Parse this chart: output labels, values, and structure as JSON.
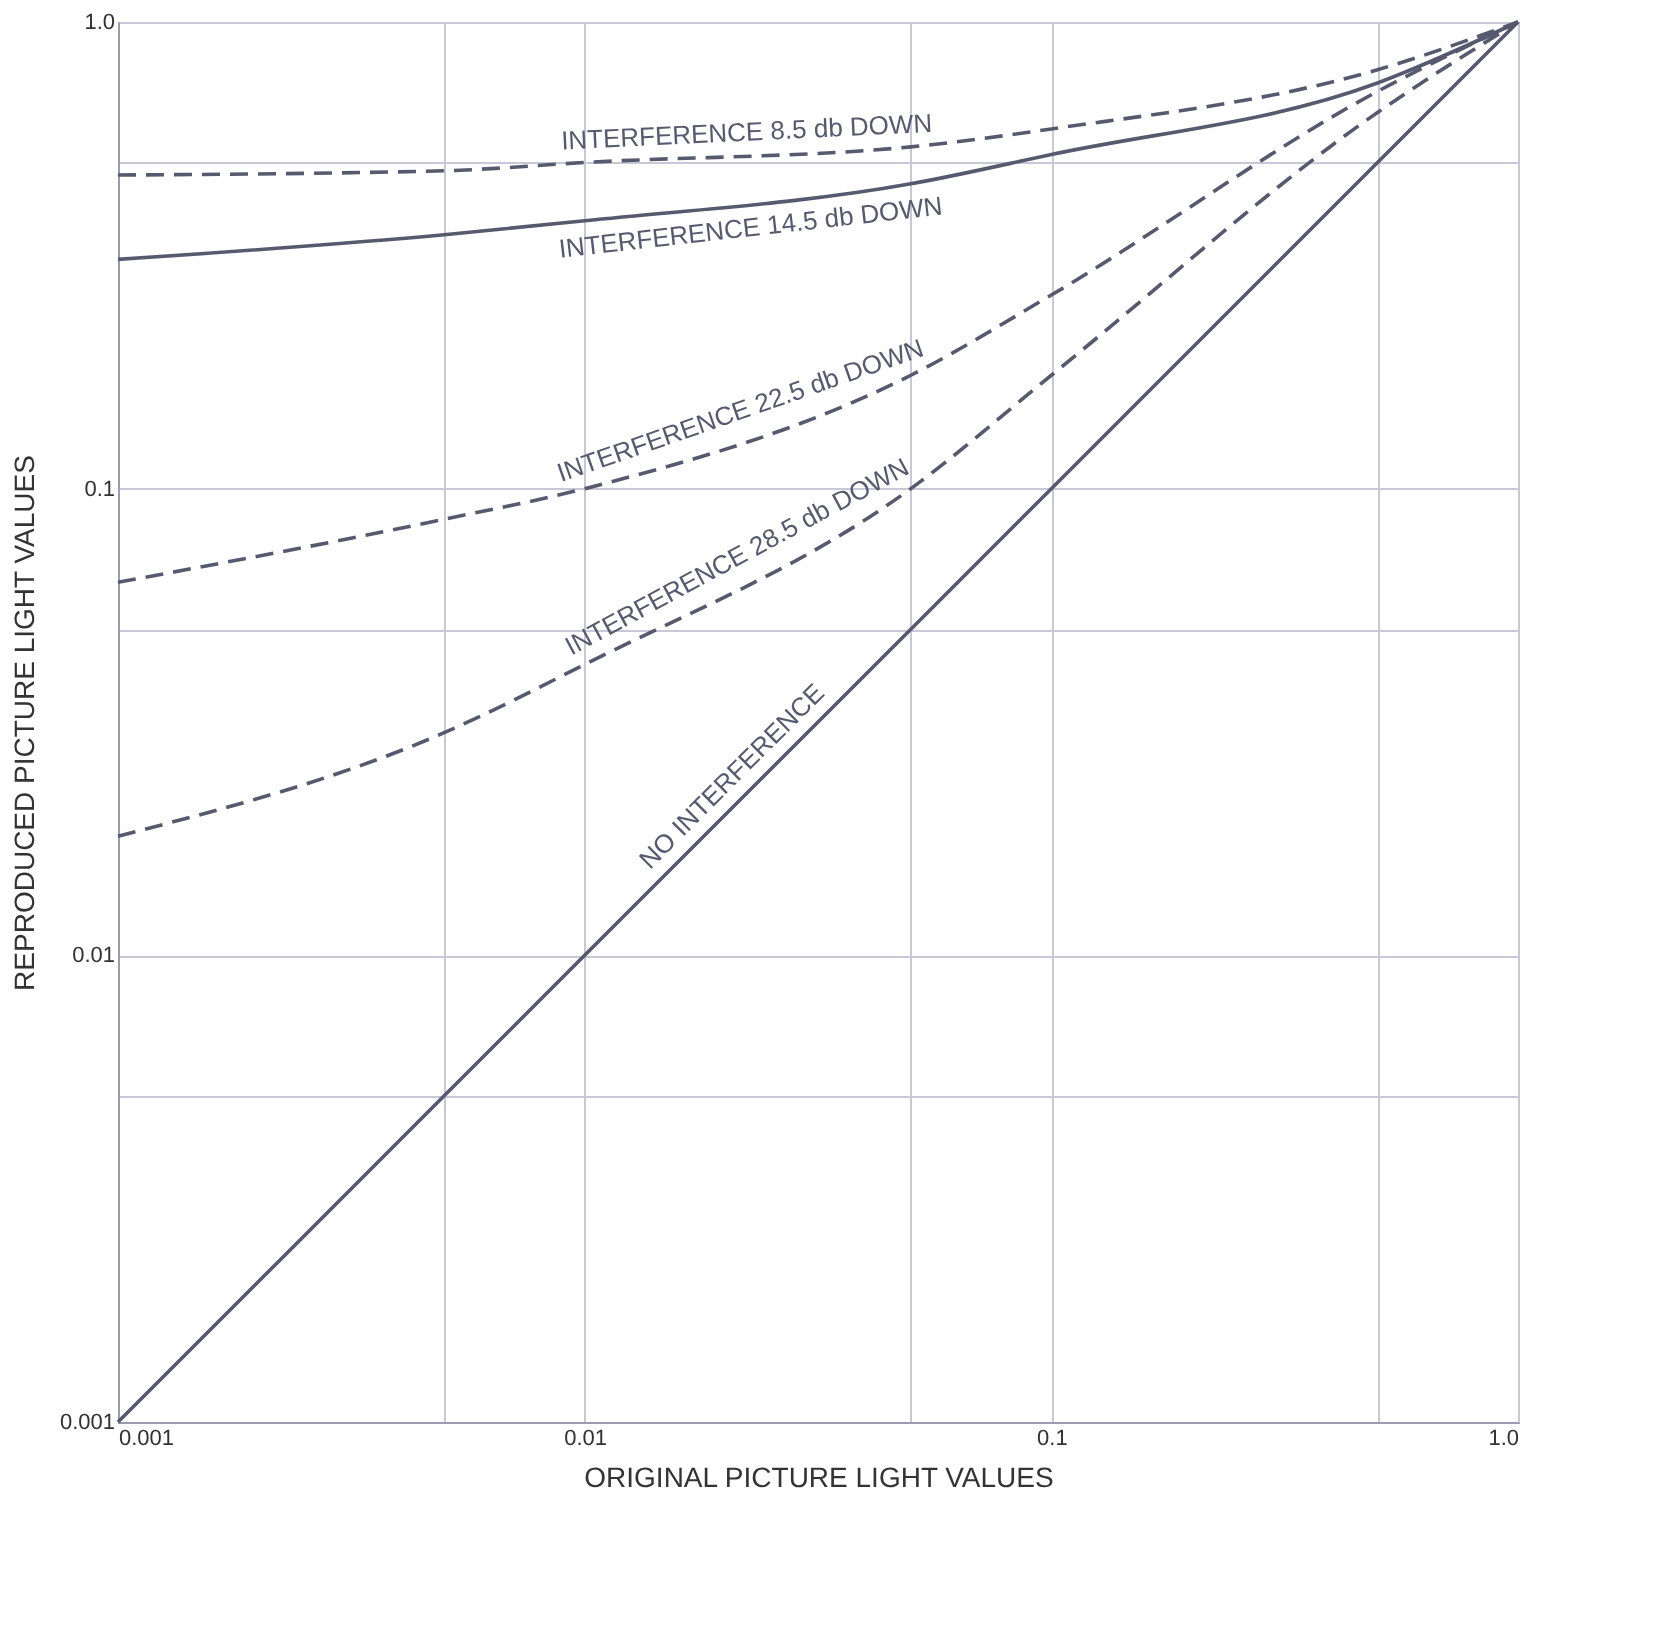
{
  "chart_data": {
    "type": "line",
    "xlabel": "ORIGINAL PICTURE LIGHT VALUES",
    "ylabel": "REPRODUCED PICTURE LIGHT VALUES",
    "x": [
      0.001,
      0.005,
      0.01,
      0.05,
      0.1,
      0.5,
      1.0
    ],
    "series": [
      {
        "name": "INTERFERENCE  8.5 db DOWN",
        "color": "#555a6e",
        "line_style": "dashed",
        "values": [
          0.47,
          0.48,
          0.5,
          0.54,
          0.59,
          0.79,
          1.0
        ]
      },
      {
        "name": "INTERFERENCE  14.5 db DOWN",
        "color": "#555a6e",
        "line_style": "solid",
        "values": [
          0.31,
          0.35,
          0.375,
          0.45,
          0.52,
          0.74,
          1.0
        ]
      },
      {
        "name": "INTERFERENCE  22.5 db DOWN",
        "color": "#555a6e",
        "line_style": "dashed",
        "values": [
          0.063,
          0.086,
          0.1,
          0.175,
          0.26,
          0.71,
          1.0
        ]
      },
      {
        "name": "INTERFERENCE  28.5 db DOWN",
        "color": "#555a6e",
        "line_style": "dashed",
        "values": [
          0.018,
          0.03,
          0.042,
          0.1,
          0.175,
          0.64,
          1.0
        ]
      },
      {
        "name": "NO INTERFERENCE",
        "color": "#555a6e",
        "line_style": "solid",
        "values": [
          0.001,
          0.005,
          0.01,
          0.05,
          0.1,
          0.5,
          1.0
        ]
      }
    ],
    "log": "xy",
    "xlim": [
      0.001,
      1.0
    ],
    "ylim": [
      0.001,
      1.0
    ],
    "xticks": [
      0.001,
      {
        "value": 0.005,
        "label": null
      },
      0.01,
      {
        "value": 0.05,
        "label": null
      },
      0.1,
      {
        "value": 0.5,
        "label": null
      },
      {
        "value": 1.0,
        "label": "1.0"
      }
    ],
    "yticks": [
      0.001,
      {
        "value": 0.005,
        "label": null
      },
      0.01,
      {
        "value": 0.05,
        "label": null
      },
      0.1,
      {
        "value": 0.5,
        "label": null
      },
      {
        "value": 1.0,
        "label": "1.0"
      }
    ],
    "grid": true,
    "marker": "none"
  }
}
